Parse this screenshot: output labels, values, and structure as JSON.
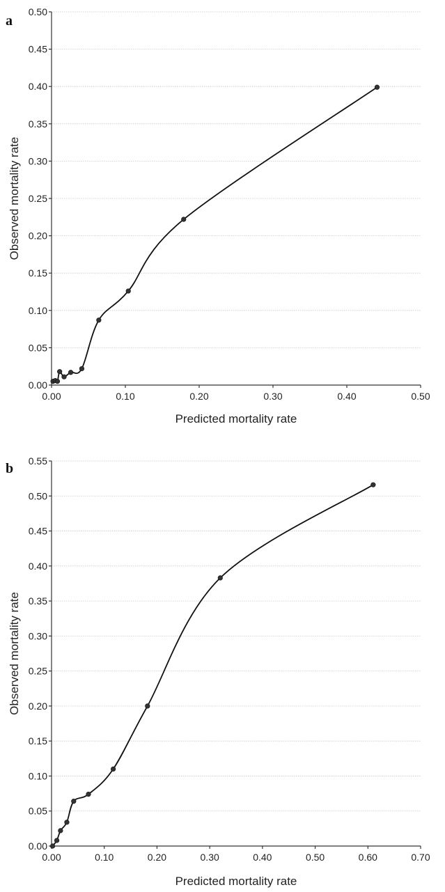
{
  "chart_data": [
    {
      "panel": "a",
      "type": "line",
      "xlabel": "Predicted mortality rate",
      "ylabel": "Observed mortality rate",
      "xlim": [
        0,
        0.5
      ],
      "ylim": [
        0,
        0.5
      ],
      "xticks": [
        "0.00",
        "0.10",
        "0.20",
        "0.30",
        "0.40",
        "0.50"
      ],
      "yticks": [
        "0.00",
        "0.05",
        "0.10",
        "0.15",
        "0.20",
        "0.25",
        "0.30",
        "0.35",
        "0.40",
        "0.45",
        "0.50"
      ],
      "grid": true,
      "series": [
        {
          "x": [
            0.002,
            0.005,
            0.008,
            0.011,
            0.017,
            0.026,
            0.041,
            0.064,
            0.104,
            0.179,
            0.441
          ],
          "y": [
            0.005,
            0.006,
            0.005,
            0.018,
            0.011,
            0.017,
            0.022,
            0.087,
            0.126,
            0.222,
            0.399
          ]
        }
      ]
    },
    {
      "panel": "b",
      "type": "line",
      "xlabel": "Predicted mortality rate",
      "ylabel": "Observed mortality rate",
      "xlim": [
        0,
        0.7
      ],
      "ylim": [
        0,
        0.55
      ],
      "xticks": [
        "0.00",
        "0.10",
        "0.20",
        "0.30",
        "0.40",
        "0.50",
        "0.60",
        "0.70"
      ],
      "yticks": [
        "0.00",
        "0.05",
        "0.10",
        "0.15",
        "0.20",
        "0.25",
        "0.30",
        "0.35",
        "0.40",
        "0.45",
        "0.50",
        "0.55"
      ],
      "grid": true,
      "series": [
        {
          "x": [
            0.002,
            0.01,
            0.017,
            0.029,
            0.042,
            0.07,
            0.117,
            0.182,
            0.32,
            0.61
          ],
          "y": [
            0.0,
            0.008,
            0.022,
            0.034,
            0.064,
            0.074,
            0.11,
            0.2,
            0.383,
            0.516
          ]
        }
      ]
    }
  ]
}
